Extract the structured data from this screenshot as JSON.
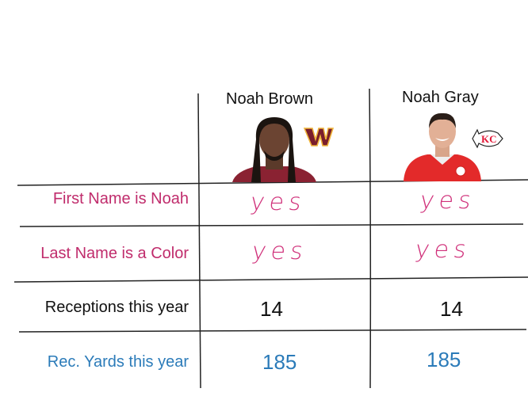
{
  "players": [
    {
      "name": "Noah Brown",
      "team_logo": "washington-commanders-logo-icon",
      "team_color": "#7a1e2c"
    },
    {
      "name": "Noah Gray",
      "team_logo": "kansas-city-chiefs-logo-icon",
      "team_color": "#e31837"
    }
  ],
  "rows": [
    {
      "label": "First Name is Noah",
      "values": [
        "yes",
        "yes"
      ]
    },
    {
      "label": "Last Name is a Color",
      "values": [
        "yes",
        "yes"
      ]
    },
    {
      "label": "Receptions this year",
      "values": [
        "14",
        "14"
      ]
    },
    {
      "label": "Rec. Yards this year",
      "values": [
        "185",
        "185"
      ]
    }
  ],
  "colors": {
    "pink": "#c02c6c",
    "blue": "#2b7bb9",
    "line": "#222222"
  }
}
